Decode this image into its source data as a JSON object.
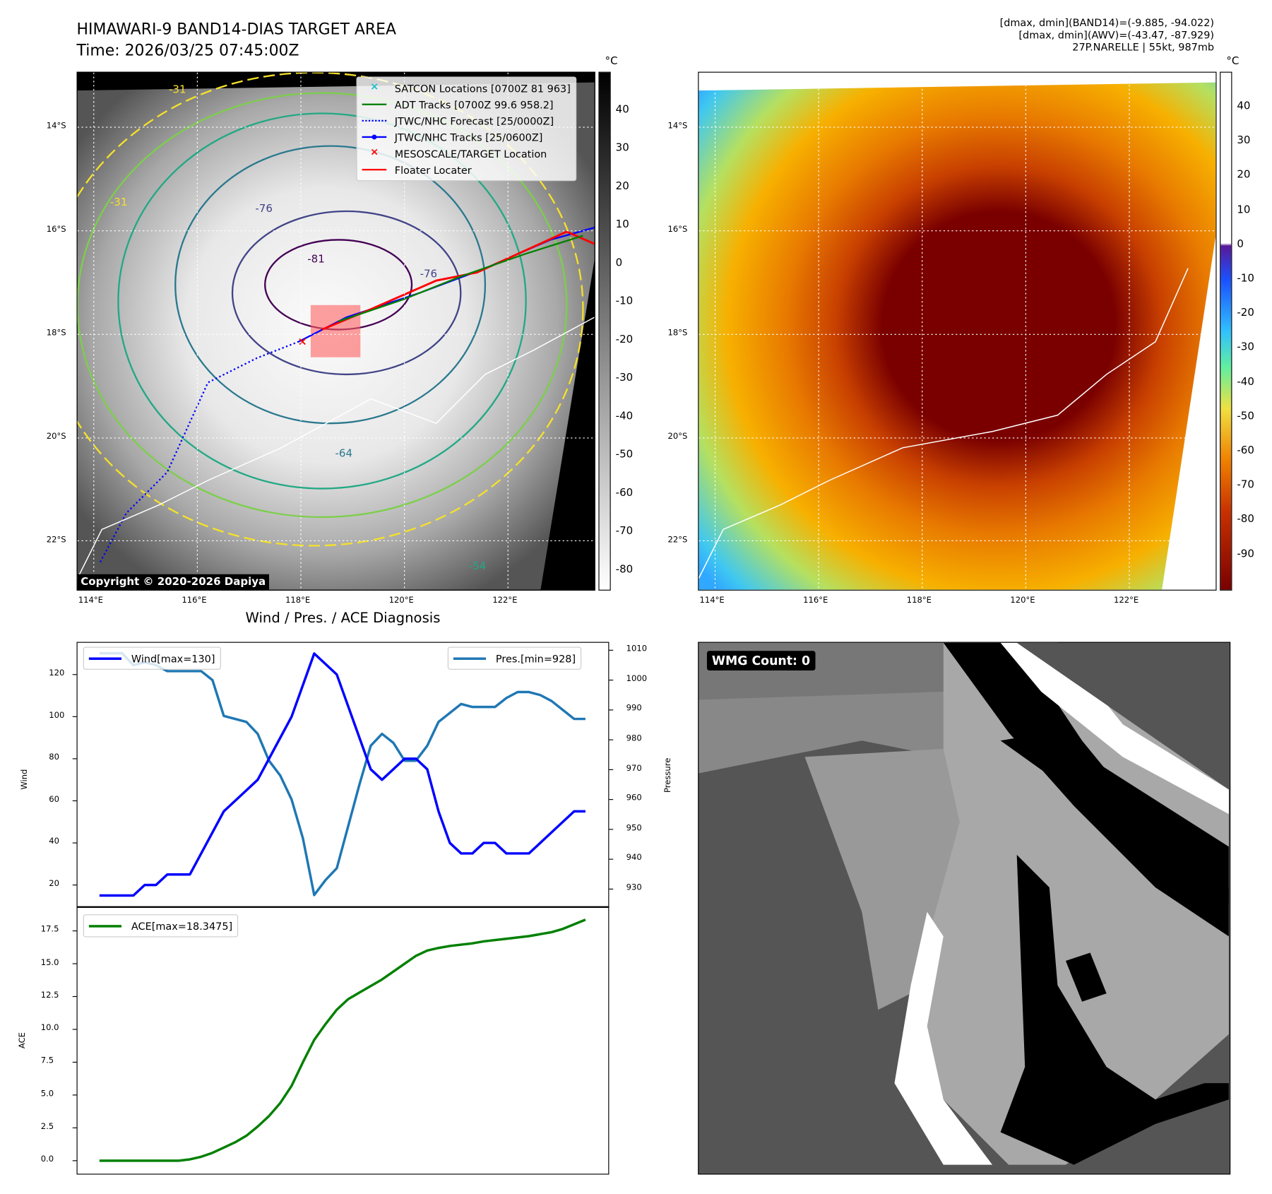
{
  "header": {
    "title": "HIMAWARI-9 BAND14-DIAS TARGET AREA",
    "time": "Time: 2026/03/25 07:45:00Z",
    "info_line1": "[dmax, dmin](BAND14)=(-9.885, -94.022)",
    "info_line2": "[dmax, dmin](AWV)=(-43.47, -87.929)",
    "info_line3": "27P.NARELLE | 55kt, 987mb"
  },
  "map": {
    "lat_labels": [
      "14°S",
      "16°S",
      "18°S",
      "20°S",
      "22°S"
    ],
    "lon_labels": [
      "114°E",
      "116°E",
      "118°E",
      "120°E",
      "122°E"
    ],
    "contour_labels": [
      "-31",
      "-31",
      "-76",
      "-81",
      "-76",
      "-64",
      "-54"
    ],
    "copyright": "Copyright © 2020-2026 Dapiya",
    "legend": [
      {
        "label": "SATCON Locations [0700Z 81 963]",
        "color": "#17becf"
      },
      {
        "label": "ADT Tracks [0700Z 99.6 958.2]",
        "color": "#008000"
      },
      {
        "label": "JTWC/NHC Forecast [25/0000Z]",
        "color": "#0000ff"
      },
      {
        "label": "JTWC/NHC Tracks [25/0600Z]",
        "color": "#0000ff"
      },
      {
        "label": "MESOSCALE/TARGET Location",
        "color": "#ff0000"
      },
      {
        "label": "Floater Locater",
        "color": "#ff0000"
      }
    ],
    "colorbar_unit": "°C",
    "colorbar_ticks": [
      "40",
      "30",
      "20",
      "10",
      "0",
      "-10",
      "-20",
      "-30",
      "-40",
      "-50",
      "-60",
      "-70",
      "-80"
    ]
  },
  "awv": {
    "colorbar_unit": "°C",
    "colorbar_ticks": [
      "40",
      "30",
      "20",
      "10",
      "0",
      "-10",
      "-20",
      "-30",
      "-40",
      "-50",
      "-60",
      "-70",
      "-80",
      "-90"
    ]
  },
  "wmg": {
    "badge": "WMG Count: 0"
  },
  "chart_data": [
    {
      "type": "line",
      "title": "Wind / Pres. / ACE Diagnosis",
      "ylabel": "Wind",
      "y2label": "Pressure",
      "ylim": [
        10,
        133
      ],
      "y2lim": [
        925,
        1013
      ],
      "yticks": [
        20,
        40,
        60,
        80,
        100,
        120
      ],
      "y2ticks": [
        930,
        940,
        950,
        960,
        970,
        980,
        990,
        1000,
        1010
      ],
      "series": [
        {
          "name": "Wind[max=130]",
          "color": "#0000ff",
          "values": [
            15,
            15,
            15,
            15,
            20,
            20,
            25,
            25,
            25,
            35,
            45,
            55,
            60,
            65,
            70,
            80,
            90,
            100,
            115,
            130,
            125,
            120,
            105,
            90,
            75,
            70,
            75,
            80,
            80,
            75,
            55,
            40,
            35,
            35,
            40,
            40,
            35,
            35,
            35,
            40,
            45,
            50,
            55,
            55
          ]
        },
        {
          "name": "Pres.[min=928]",
          "color": "#1f77b4",
          "axis": "right",
          "values": [
            1009,
            1009,
            1009,
            1005,
            1006,
            1005,
            1003,
            1003,
            1003,
            1003,
            1000,
            988,
            987,
            986,
            982,
            973,
            968,
            960,
            947,
            928,
            933,
            937,
            951,
            965,
            978,
            982,
            979,
            973,
            973,
            978,
            986,
            989,
            992,
            991,
            991,
            991,
            994,
            996,
            996,
            995,
            993,
            990,
            987,
            987
          ]
        }
      ]
    },
    {
      "type": "line",
      "ylabel": "ACE",
      "ylim": [
        -0.9,
        19
      ],
      "yticks": [
        "0.0",
        "2.5",
        "5.0",
        "7.5",
        "10.0",
        "12.5",
        "15.0",
        "17.5"
      ],
      "series": [
        {
          "name": "ACE[max=18.3475]",
          "color": "#008000",
          "values": [
            0,
            0,
            0,
            0,
            0,
            0,
            0,
            0,
            0.1,
            0.3,
            0.6,
            1.0,
            1.4,
            1.9,
            2.6,
            3.4,
            4.4,
            5.7,
            7.5,
            9.2,
            10.4,
            11.5,
            12.3,
            12.8,
            13.3,
            13.8,
            14.4,
            15.0,
            15.6,
            16.0,
            16.2,
            16.35,
            16.45,
            16.55,
            16.7,
            16.8,
            16.9,
            17.0,
            17.1,
            17.25,
            17.4,
            17.65,
            18.0,
            18.35
          ]
        }
      ]
    }
  ]
}
